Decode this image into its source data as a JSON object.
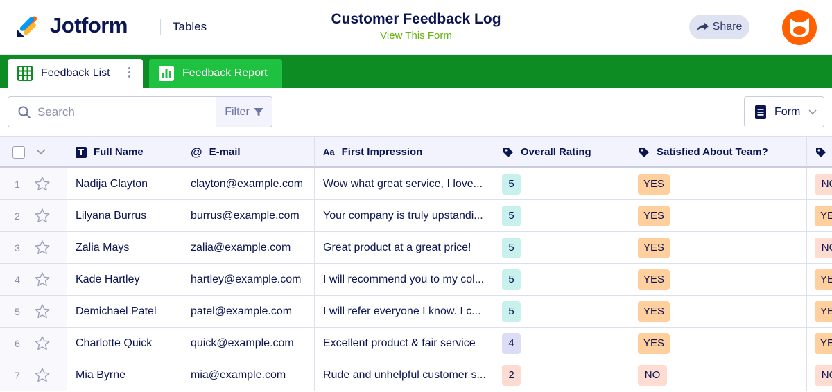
{
  "header": {
    "brand": "Jotform",
    "section": "Tables",
    "form_title": "Customer Feedback Log",
    "view_form": "View This Form",
    "share_label": "Share"
  },
  "tabs": [
    {
      "label": "Feedback List",
      "icon": "grid-icon",
      "active": true
    },
    {
      "label": "Feedback Report",
      "icon": "report-icon",
      "active": false
    }
  ],
  "toolbar": {
    "search_placeholder": "Search",
    "filter_label": "Filter",
    "form_label": "Form"
  },
  "columns": [
    {
      "label": "Full Name",
      "icon": "text-type-icon"
    },
    {
      "label": "E-mail",
      "icon": "at-icon"
    },
    {
      "label": "First Impression",
      "icon": "aa-type-icon"
    },
    {
      "label": "Overall Rating",
      "icon": "tag-icon"
    },
    {
      "label": "Satisfied About Team?",
      "icon": "tag-icon"
    },
    {
      "label": "",
      "icon": "tag-icon"
    }
  ],
  "rows": [
    {
      "num": "1",
      "name": "Nadija Clayton",
      "email": "clayton@example.com",
      "impression": "Wow what great service, I love...",
      "rating": "5",
      "rating_color": "#c8f0ec",
      "satisfied": "YES",
      "extra": "NO"
    },
    {
      "num": "2",
      "name": "Lilyana Burrus",
      "email": "burrus@example.com",
      "impression": "Your company is truly upstandi...",
      "rating": "5",
      "rating_color": "#c8f0ec",
      "satisfied": "YES",
      "extra": "YES"
    },
    {
      "num": "3",
      "name": "Zalia Mays",
      "email": "zalia@example.com",
      "impression": "Great product at a great price!",
      "rating": "5",
      "rating_color": "#c8f0ec",
      "satisfied": "YES",
      "extra": "NO"
    },
    {
      "num": "4",
      "name": "Kade Hartley",
      "email": "hartley@example.com",
      "impression": "I will recommend you to my col...",
      "rating": "5",
      "rating_color": "#c8f0ec",
      "satisfied": "YES",
      "extra": "YES"
    },
    {
      "num": "5",
      "name": "Demichael Patel",
      "email": "patel@example.com",
      "impression": "I will refer everyone I know. I c...",
      "rating": "5",
      "rating_color": "#c8f0ec",
      "satisfied": "YES",
      "extra": "YES"
    },
    {
      "num": "6",
      "name": "Charlotte Quick",
      "email": "quick@example.com",
      "impression": "Excellent product & fair service",
      "rating": "4",
      "rating_color": "#dcdcf6",
      "satisfied": "YES",
      "extra": "YES"
    },
    {
      "num": "7",
      "name": "Mia Byrne",
      "email": "mia@example.com",
      "impression": "Rude and unhelpful customer s...",
      "rating": "2",
      "rating_color": "#fcdcd2",
      "satisfied": "NO",
      "extra": "NO"
    }
  ],
  "colors": {
    "brand_green": "#0d8c23",
    "report_tab": "#1fc140",
    "navy": "#0a1551",
    "view_form": "#64b20a",
    "avatar": "#ff6100"
  }
}
